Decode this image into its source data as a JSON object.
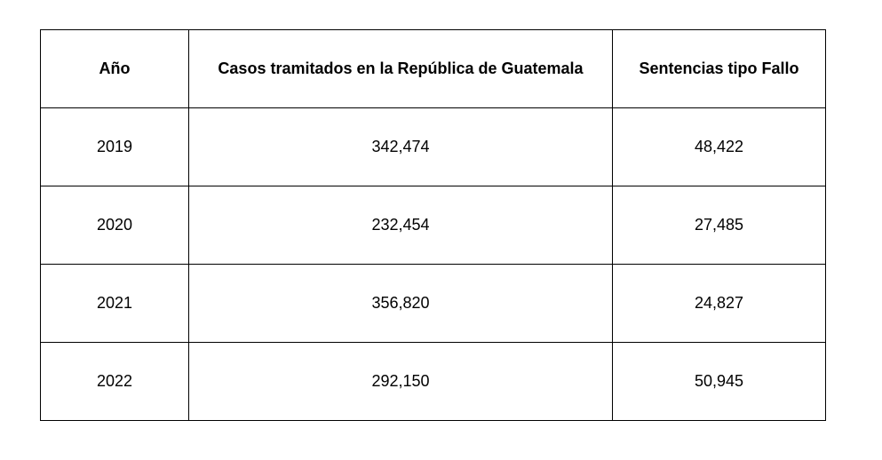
{
  "table": {
    "header": [
      "Año",
      "Casos tramitados en la República de Guatemala",
      "Sentencias tipo Fallo"
    ],
    "rows": [
      [
        "2019",
        "342,474",
        "48,422"
      ],
      [
        "2020",
        "232,454",
        "27,485"
      ],
      [
        "2021",
        "356,820",
        "24,827"
      ],
      [
        "2022",
        "292,150",
        "50,945"
      ]
    ]
  }
}
